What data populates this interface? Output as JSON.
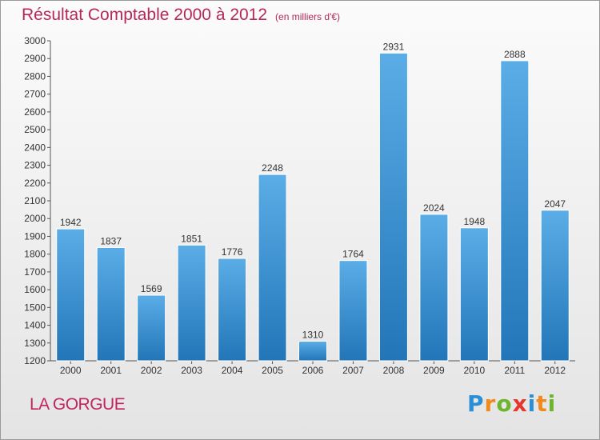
{
  "header": {
    "title": "Résultat Comptable 2000 à 2012",
    "subtitle": "(en milliers d'€)"
  },
  "footer": {
    "place": "LA GORGUE",
    "logo": {
      "letters": [
        "P",
        "r",
        "o",
        "x",
        "i",
        "t",
        "i"
      ],
      "colors": [
        "#2a8fd6",
        "#f08a1c",
        "#6cb52d",
        "#e6362c",
        "#2a8fd6",
        "#f08a1c",
        "#6cb52d"
      ]
    }
  },
  "chart_data": {
    "type": "bar",
    "categories": [
      "2000",
      "2001",
      "2002",
      "2003",
      "2004",
      "2005",
      "2006",
      "2007",
      "2008",
      "2009",
      "2010",
      "2011",
      "2012"
    ],
    "values": [
      1942,
      1837,
      1569,
      1851,
      1776,
      2248,
      1310,
      1764,
      2931,
      2024,
      1948,
      2888,
      2047
    ],
    "title": "Résultat Comptable 2000 à 2012",
    "xlabel": "",
    "ylabel": "",
    "ylim": [
      1200,
      3000
    ],
    "yticks": [
      1200,
      1300,
      1400,
      1500,
      1600,
      1700,
      1800,
      1900,
      2000,
      2100,
      2200,
      2300,
      2400,
      2500,
      2600,
      2700,
      2800,
      2900,
      3000
    ],
    "grid": false,
    "legend": "none",
    "bar_color_top": "#5aade6",
    "bar_color_bottom": "#2276b8",
    "value_labels": true
  }
}
